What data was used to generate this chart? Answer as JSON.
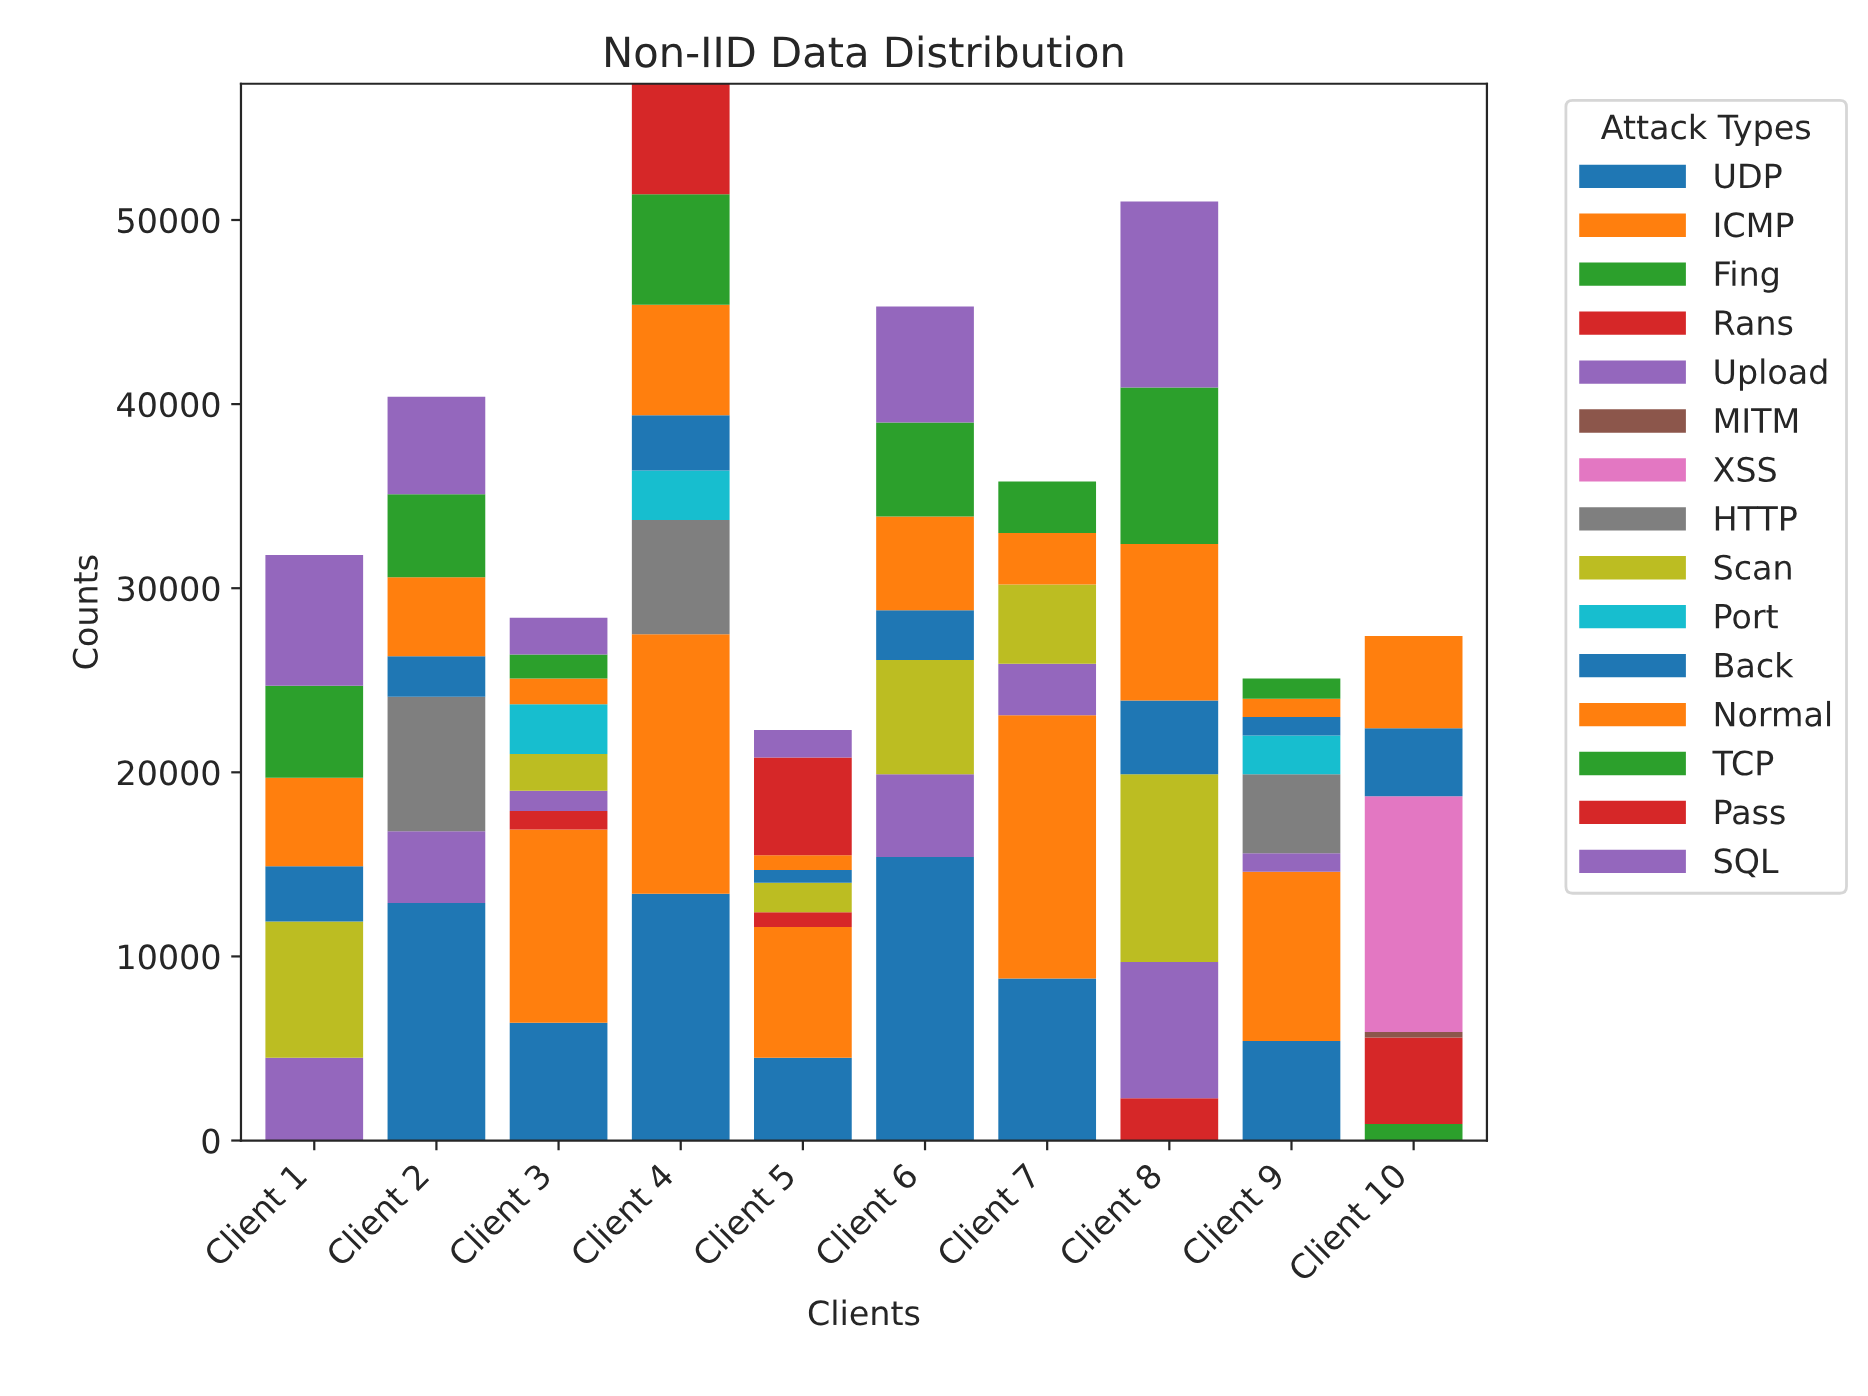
{
  "chart_data": {
    "type": "bar",
    "stacked": true,
    "title": "Non-IID Data Distribution",
    "xlabel": "Clients",
    "ylabel": "Counts",
    "legend_title": "Attack Types",
    "legend": "top right",
    "categories": [
      "Client 1",
      "Client 2",
      "Client 3",
      "Client 4",
      "Client 5",
      "Client 6",
      "Client 7",
      "Client 8",
      "Client 9",
      "Client 10"
    ],
    "ylim": [
      0,
      57400
    ],
    "yticks": [
      0,
      10000,
      20000,
      30000,
      40000,
      50000
    ],
    "grid": false,
    "series": [
      {
        "name": "UDP",
        "color": "#1f77b4",
        "values": [
          0,
          12900,
          6400,
          13400,
          4500,
          15400,
          8800,
          0,
          5400,
          0
        ]
      },
      {
        "name": "ICMP",
        "color": "#ff7f0e",
        "values": [
          0,
          0,
          10500,
          14100,
          7100,
          0,
          14300,
          0,
          9200,
          0
        ]
      },
      {
        "name": "Fing",
        "color": "#2ca02c",
        "values": [
          0,
          0,
          0,
          0,
          0,
          0,
          0,
          0,
          0,
          900
        ]
      },
      {
        "name": "Rans",
        "color": "#d62728",
        "values": [
          0,
          0,
          1000,
          0,
          800,
          0,
          0,
          2300,
          0,
          4700
        ]
      },
      {
        "name": "Upload",
        "color": "#9467bd",
        "values": [
          4500,
          3900,
          1100,
          0,
          0,
          4500,
          2800,
          7400,
          1000,
          0
        ]
      },
      {
        "name": "MITM",
        "color": "#8c564b",
        "values": [
          0,
          0,
          0,
          0,
          0,
          0,
          0,
          0,
          0,
          300
        ]
      },
      {
        "name": "XSS",
        "color": "#e377c2",
        "values": [
          0,
          0,
          0,
          0,
          0,
          0,
          0,
          0,
          0,
          12800
        ]
      },
      {
        "name": "HTTP",
        "color": "#7f7f7f",
        "values": [
          0,
          7300,
          0,
          6200,
          0,
          0,
          0,
          0,
          4300,
          0
        ]
      },
      {
        "name": "Scan",
        "color": "#bcbd22",
        "values": [
          7400,
          0,
          2000,
          0,
          1600,
          6200,
          4300,
          10200,
          0,
          0
        ]
      },
      {
        "name": "Port",
        "color": "#17becf",
        "values": [
          0,
          0,
          2700,
          2700,
          0,
          0,
          0,
          0,
          2100,
          0
        ]
      },
      {
        "name": "Back",
        "color": "#1f77b4",
        "values": [
          3000,
          2200,
          0,
          3000,
          700,
          2700,
          0,
          4000,
          1000,
          3700
        ]
      },
      {
        "name": "Normal",
        "color": "#ff7f0e",
        "values": [
          4800,
          4300,
          1400,
          6000,
          800,
          5100,
          2800,
          8500,
          1000,
          5000
        ]
      },
      {
        "name": "TCP",
        "color": "#2ca02c",
        "values": [
          5000,
          4500,
          1300,
          6000,
          0,
          5100,
          2800,
          8500,
          1100,
          0
        ]
      },
      {
        "name": "Pass",
        "color": "#d62728",
        "values": [
          0,
          0,
          0,
          6000,
          5300,
          0,
          0,
          0,
          0,
          0
        ]
      },
      {
        "name": "SQL",
        "color": "#9467bd",
        "values": [
          7100,
          5300,
          2000,
          0,
          1500,
          6300,
          0,
          10100,
          0,
          0
        ]
      }
    ]
  }
}
